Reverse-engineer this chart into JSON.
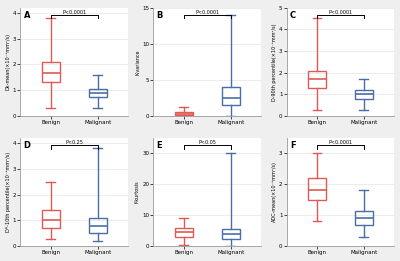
{
  "panels": [
    {
      "label": "A",
      "ylabel": "Dk-mean(×10⁻³mm²/s)",
      "pvalue": "P<0.0001",
      "benign": {
        "whislo": 0.3,
        "q1": 1.3,
        "med": 1.65,
        "q3": 2.1,
        "whishi": 3.8
      },
      "malignant": {
        "whislo": 0.3,
        "q1": 0.75,
        "med": 0.9,
        "q3": 1.05,
        "whishi": 1.6
      },
      "ylim": [
        0,
        4.2
      ],
      "yticks": [
        0,
        1,
        2,
        3,
        4
      ]
    },
    {
      "label": "B",
      "ylabel": "K-variance",
      "pvalue": "P<0.0001",
      "benign": {
        "whislo": 0.0,
        "q1": 0.1,
        "med": 0.3,
        "q3": 0.5,
        "whishi": 1.2
      },
      "malignant": {
        "whislo": 0.0,
        "q1": 1.5,
        "med": 2.5,
        "q3": 4.0,
        "whishi": 14.0
      },
      "ylim": [
        0,
        15
      ],
      "yticks": [
        0,
        5,
        10,
        15
      ]
    },
    {
      "label": "C",
      "ylabel": "D-90th percentile(×10⁻³mm²/s)",
      "pvalue": "P<0.0001",
      "benign": {
        "whislo": 0.3,
        "q1": 1.3,
        "med": 1.7,
        "q3": 2.1,
        "whishi": 4.5
      },
      "malignant": {
        "whislo": 0.3,
        "q1": 0.8,
        "med": 1.0,
        "q3": 1.2,
        "whishi": 1.7
      },
      "ylim": [
        0,
        5
      ],
      "yticks": [
        0,
        1,
        2,
        3,
        4,
        5
      ]
    },
    {
      "label": "D",
      "ylabel": "D*-10th percentile(×10⁻³mm²/s)",
      "pvalue": "P<0.25",
      "benign": {
        "whislo": 0.3,
        "q1": 0.7,
        "med": 1.0,
        "q3": 1.4,
        "whishi": 2.5
      },
      "malignant": {
        "whislo": 0.2,
        "q1": 0.5,
        "med": 0.8,
        "q3": 1.1,
        "whishi": 3.8
      },
      "ylim": [
        0,
        4.2
      ],
      "yticks": [
        0,
        1,
        2,
        3,
        4
      ]
    },
    {
      "label": "E",
      "ylabel": "f-kurtosis",
      "pvalue": "P<0.05",
      "benign": {
        "whislo": 0.5,
        "q1": 3.0,
        "med": 4.5,
        "q3": 6.0,
        "whishi": 9.0
      },
      "malignant": {
        "whislo": 0.0,
        "q1": 2.5,
        "med": 4.0,
        "q3": 5.5,
        "whishi": 30.0
      },
      "ylim": [
        0,
        35
      ],
      "yticks": [
        0,
        10,
        20,
        30
      ]
    },
    {
      "label": "F",
      "ylabel": "ADC-mean(×10⁻³mm²/s)",
      "pvalue": "P<0.0001",
      "benign": {
        "whislo": 0.8,
        "q1": 1.5,
        "med": 1.8,
        "q3": 2.2,
        "whishi": 3.0
      },
      "malignant": {
        "whislo": 0.3,
        "q1": 0.7,
        "med": 0.9,
        "q3": 1.15,
        "whishi": 1.8
      },
      "ylim": [
        0,
        3.5
      ],
      "yticks": [
        0,
        1,
        2,
        3
      ]
    }
  ],
  "benign_color": "#E05A55",
  "malignant_color": "#4A6FA5",
  "benign_label": "Benign",
  "malignant_label": "Malignant",
  "background_color": "#FFFFFF",
  "fig_background": "#EFEFEF"
}
